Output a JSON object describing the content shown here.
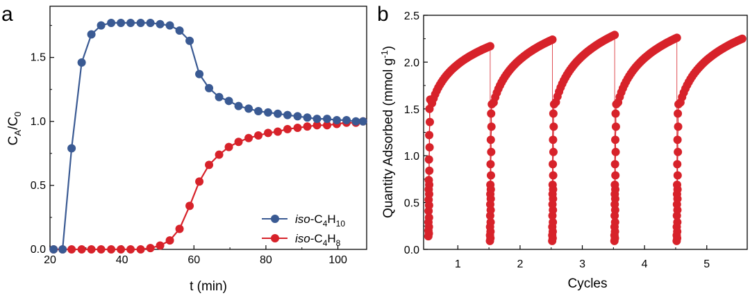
{
  "colors": {
    "blue": "#3a5a93",
    "red": "#d7222a",
    "axis": "#000000"
  },
  "chart_data": [
    {
      "panel": "a",
      "type": "line",
      "xlabel": "t (min)",
      "ylabel": {
        "base1": "C",
        "sub1": "A",
        "sep": "/",
        "base2": "C",
        "sub2": "0"
      },
      "xlim": [
        20,
        108
      ],
      "ylim": [
        0,
        1.9
      ],
      "xticks": [
        20,
        40,
        60,
        80,
        100
      ],
      "xtick_labels": [
        "20",
        "40",
        "60",
        "80",
        "100"
      ],
      "yticks": [
        0,
        0.5,
        1.0,
        1.5
      ],
      "ytick_labels": [
        "0.0",
        "0.5",
        "1.0",
        "1.5"
      ],
      "legend_position": "bottom-right",
      "series": [
        {
          "name": "iso-C4H10",
          "legend": {
            "italic": "iso",
            "text": "-C",
            "sub1": "4",
            "text2": "H",
            "sub2": "10"
          },
          "color": "#3a5a93",
          "line_only": [
            [
              23.5,
              0
            ],
            [
              23.9,
              0
            ]
          ],
          "points": [
            [
              21,
              0
            ],
            [
              23.5,
              0
            ],
            [
              26,
              0.79
            ],
            [
              28.8,
              1.46
            ],
            [
              31.5,
              1.68
            ],
            [
              34.2,
              1.75
            ],
            [
              37,
              1.77
            ],
            [
              39.7,
              1.77
            ],
            [
              42.4,
              1.77
            ],
            [
              45.2,
              1.77
            ],
            [
              47.9,
              1.77
            ],
            [
              50.6,
              1.76
            ],
            [
              53.3,
              1.75
            ],
            [
              56,
              1.71
            ],
            [
              58.8,
              1.63
            ],
            [
              61.5,
              1.37
            ],
            [
              64.2,
              1.26
            ],
            [
              67,
              1.19
            ],
            [
              69.7,
              1.16
            ],
            [
              72.4,
              1.12
            ],
            [
              75.2,
              1.1
            ],
            [
              77.9,
              1.08
            ],
            [
              80.6,
              1.07
            ],
            [
              83.3,
              1.06
            ],
            [
              86,
              1.05
            ],
            [
              88.8,
              1.04
            ],
            [
              91.5,
              1.03
            ],
            [
              94.2,
              1.02
            ],
            [
              97,
              1.02
            ],
            [
              99.7,
              1.01
            ],
            [
              102.4,
              1.01
            ],
            [
              105,
              1.0
            ],
            [
              107,
              1.0
            ]
          ],
          "line_start_index": 1
        },
        {
          "name": "iso-C4H8",
          "legend": {
            "italic": "iso",
            "text": "-C",
            "sub1": "4",
            "text2": "H",
            "sub2": "8"
          },
          "color": "#d7222a",
          "points": [
            [
              21,
              0
            ],
            [
              23.5,
              0
            ],
            [
              26,
              0
            ],
            [
              28.8,
              0
            ],
            [
              31.5,
              0
            ],
            [
              34.2,
              0
            ],
            [
              37,
              0
            ],
            [
              39.7,
              0
            ],
            [
              42.4,
              0
            ],
            [
              45.2,
              0
            ],
            [
              47.9,
              0.01
            ],
            [
              50.6,
              0.03
            ],
            [
              53.3,
              0.07
            ],
            [
              56,
              0.16
            ],
            [
              58.8,
              0.34
            ],
            [
              61.5,
              0.53
            ],
            [
              64.2,
              0.66
            ],
            [
              67,
              0.74
            ],
            [
              69.7,
              0.8
            ],
            [
              72.4,
              0.84
            ],
            [
              75.2,
              0.87
            ],
            [
              77.9,
              0.89
            ],
            [
              80.6,
              0.91
            ],
            [
              83.3,
              0.92
            ],
            [
              86,
              0.94
            ],
            [
              88.8,
              0.95
            ],
            [
              91.5,
              0.96
            ],
            [
              94.2,
              0.97
            ],
            [
              97,
              0.97
            ],
            [
              99.7,
              0.98
            ],
            [
              102.4,
              0.99
            ],
            [
              105,
              0.99
            ],
            [
              107,
              1.0
            ]
          ]
        }
      ]
    },
    {
      "panel": "b",
      "type": "scatter",
      "xlabel": "Cycles",
      "ylabel": {
        "text": "Quantity Adsorbed (mmol g",
        "sup": "-1",
        "tail": ")"
      },
      "xlim": [
        0.45,
        5.65
      ],
      "ylim": [
        0,
        2.5
      ],
      "xticks": [
        1,
        2,
        3,
        4,
        5
      ],
      "xtick_labels": [
        "1",
        "2",
        "3",
        "4",
        "5"
      ],
      "yticks": [
        0.0,
        0.5,
        1.0,
        1.5,
        2.0,
        2.5
      ],
      "ytick_labels": [
        "0.0",
        "0.5",
        "1.0",
        "1.5",
        "2.0",
        "2.5"
      ],
      "series": [
        {
          "name": "Cycle 1",
          "color": "#d7222a",
          "x_start": 0.53,
          "x_end": 1.52,
          "y_final": 2.17,
          "y_start": 0.14
        },
        {
          "name": "Cycle 2",
          "color": "#d7222a",
          "x_start": 1.52,
          "x_end": 2.52,
          "y_final": 2.24,
          "y_start": 0.09
        },
        {
          "name": "Cycle 3",
          "color": "#d7222a",
          "x_start": 2.52,
          "x_end": 3.52,
          "y_final": 2.29,
          "y_start": 0.09
        },
        {
          "name": "Cycle 4",
          "color": "#d7222a",
          "x_start": 3.52,
          "x_end": 4.52,
          "y_final": 2.26,
          "y_start": 0.09
        },
        {
          "name": "Cycle 5",
          "color": "#d7222a",
          "x_start": 4.52,
          "x_end": 5.57,
          "y_final": 2.25,
          "y_start": 0.09
        }
      ]
    }
  ]
}
